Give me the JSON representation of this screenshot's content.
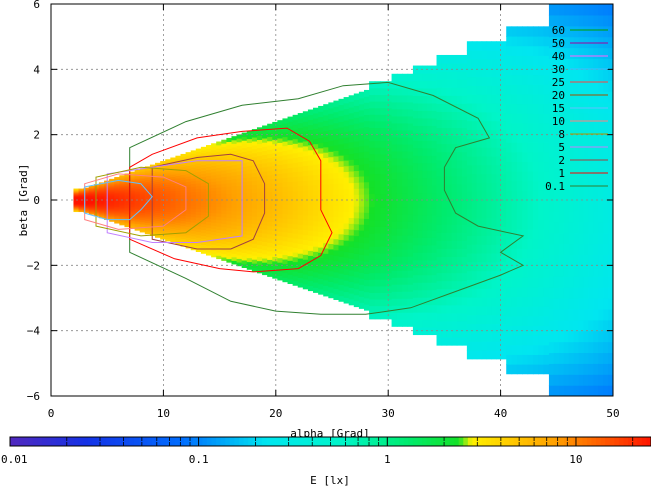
{
  "chart_data": {
    "type": "heatmap",
    "xlabel": "alpha [Grad]",
    "ylabel": "beta [Grad]",
    "xlim": [
      0,
      50
    ],
    "ylim": [
      6,
      -6
    ],
    "x_ticks": [
      0,
      10,
      20,
      30,
      40,
      50
    ],
    "y_ticks": [
      -6,
      -4,
      -2,
      0,
      2,
      4,
      6
    ],
    "grid": true,
    "legend_position": "right",
    "contour_levels": [
      "60",
      "50",
      "40",
      "30",
      "25",
      "20",
      "15",
      "10",
      "8",
      "5",
      "2",
      "1",
      "0.1"
    ],
    "contour_colors": [
      "#00a000",
      "#a000a0",
      "#ff60ff",
      "#40c0ff",
      "#ff4040",
      "#a05000",
      "#60c0ff",
      "#ff8080",
      "#a0a000",
      "#c080ff",
      "#a04040",
      "#ff0000",
      "#308030"
    ],
    "colorbar": {
      "label": "E [lx]",
      "scale": "log",
      "range": [
        0.01,
        25
      ],
      "tick_labels": [
        "0.01",
        "0.1",
        "1",
        "10"
      ],
      "tick_values": [
        0.01,
        0.1,
        1,
        10
      ]
    },
    "contours": [
      {
        "level": "0.1",
        "points": [
          [
            7,
            -1.6
          ],
          [
            12,
            -2.4
          ],
          [
            16,
            -3.1
          ],
          [
            20,
            -3.4
          ],
          [
            24,
            -3.5
          ],
          [
            28,
            -3.5
          ],
          [
            32,
            -3.3
          ],
          [
            36,
            -2.8
          ],
          [
            40,
            -2.3
          ],
          [
            42,
            -2.0
          ],
          [
            40,
            -1.6
          ],
          [
            42,
            -1.1
          ],
          [
            38,
            -0.8
          ],
          [
            36,
            -0.4
          ],
          [
            35,
            0.3
          ],
          [
            35,
            1.0
          ],
          [
            36,
            1.6
          ],
          [
            39,
            1.9
          ],
          [
            38,
            2.5
          ],
          [
            34,
            3.2
          ],
          [
            30,
            3.6
          ],
          [
            26,
            3.5
          ],
          [
            22,
            3.1
          ],
          [
            17,
            2.9
          ],
          [
            12,
            2.4
          ],
          [
            7,
            1.6
          ]
        ]
      },
      {
        "level": "1",
        "points": [
          [
            7,
            -1.2
          ],
          [
            11,
            -1.8
          ],
          [
            15,
            -2.1
          ],
          [
            18,
            -2.2
          ],
          [
            22,
            -2.1
          ],
          [
            24,
            -1.7
          ],
          [
            25,
            -1.0
          ],
          [
            24,
            -0.3
          ],
          [
            24,
            0.5
          ],
          [
            24,
            1.2
          ],
          [
            23,
            1.8
          ],
          [
            21,
            2.2
          ],
          [
            17,
            2.1
          ],
          [
            13,
            1.9
          ],
          [
            9,
            1.4
          ],
          [
            7,
            1.0
          ]
        ]
      },
      {
        "level": "2",
        "points": [
          [
            9,
            -1.2
          ],
          [
            13,
            -1.5
          ],
          [
            16,
            -1.5
          ],
          [
            18,
            -1.2
          ],
          [
            19,
            -0.4
          ],
          [
            19,
            0.5
          ],
          [
            18,
            1.2
          ],
          [
            16,
            1.4
          ],
          [
            13,
            1.3
          ],
          [
            9,
            1.0
          ]
        ]
      },
      {
        "level": "5",
        "points": [
          [
            5,
            -1.0
          ],
          [
            9,
            -1.3
          ],
          [
            13,
            -1.3
          ],
          [
            17,
            -1.1
          ],
          [
            17,
            0.2
          ],
          [
            17,
            1.2
          ],
          [
            13,
            1.2
          ],
          [
            9,
            1.0
          ],
          [
            5,
            0.8
          ]
        ]
      },
      {
        "level": "8",
        "points": [
          [
            4,
            -0.8
          ],
          [
            8,
            -1.1
          ],
          [
            12,
            -1.0
          ],
          [
            14,
            -0.5
          ],
          [
            14,
            0.5
          ],
          [
            12,
            0.9
          ],
          [
            8,
            1.0
          ],
          [
            4,
            0.7
          ]
        ]
      },
      {
        "level": "10",
        "points": [
          [
            3,
            -0.6
          ],
          [
            6,
            -0.9
          ],
          [
            10,
            -0.8
          ],
          [
            12,
            -0.3
          ],
          [
            12,
            0.4
          ],
          [
            10,
            0.7
          ],
          [
            6,
            0.8
          ],
          [
            3,
            0.5
          ]
        ]
      },
      {
        "level": "15",
        "points": [
          [
            3,
            -0.4
          ],
          [
            5,
            -0.6
          ],
          [
            7,
            -0.6
          ],
          [
            8,
            -0.3
          ],
          [
            9,
            0.1
          ],
          [
            8,
            0.5
          ],
          [
            6,
            0.6
          ],
          [
            3,
            0.4
          ]
        ]
      }
    ]
  }
}
